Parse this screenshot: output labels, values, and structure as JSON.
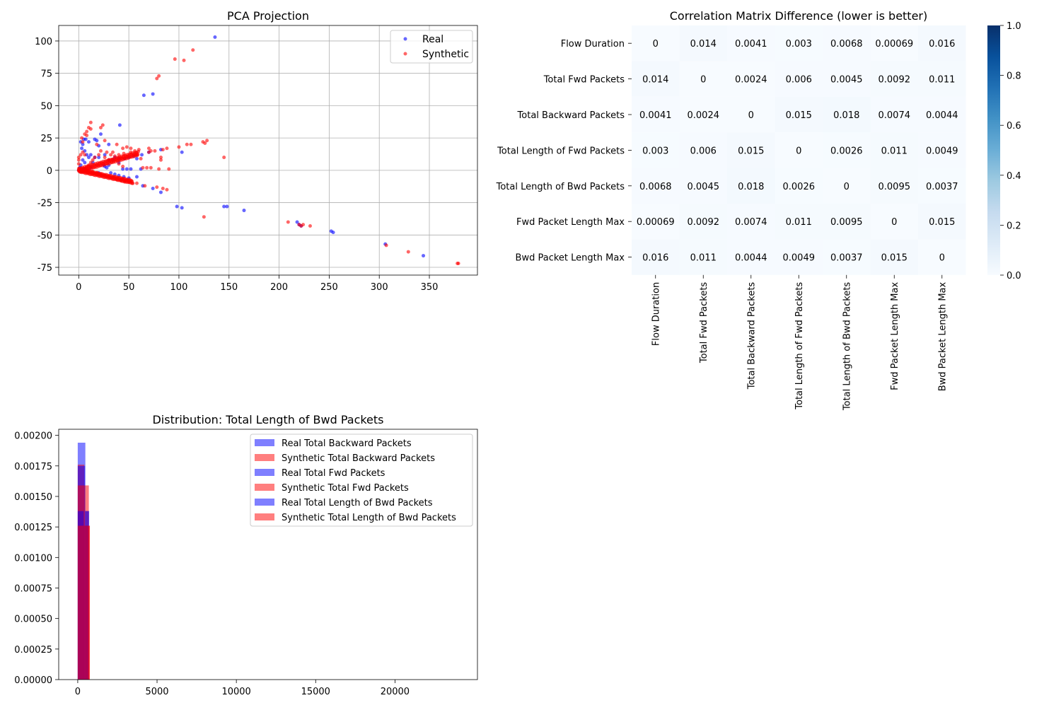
{
  "chart_data": [
    {
      "type": "scatter",
      "title": "PCA Projection",
      "xlabel": "",
      "ylabel": "",
      "xlim": [
        -20,
        398
      ],
      "ylim": [
        -81,
        112
      ],
      "xticks": [
        0,
        50,
        100,
        150,
        200,
        250,
        300,
        350
      ],
      "yticks": [
        -75,
        -50,
        -25,
        0,
        25,
        50,
        75,
        100
      ],
      "grid": true,
      "legend_position": "top-right",
      "series": [
        {
          "name": "Real",
          "color": "#0000ff",
          "points": [
            [
              136,
              103
            ],
            [
              65,
              58
            ],
            [
              74,
              59
            ],
            [
              41,
              35
            ],
            [
              2,
              22
            ],
            [
              4,
              20
            ],
            [
              3,
              17
            ],
            [
              5,
              24
            ],
            [
              7,
              24
            ],
            [
              10,
              22
            ],
            [
              16,
              24
            ],
            [
              18,
              23
            ],
            [
              20,
              19
            ],
            [
              22,
              28
            ],
            [
              12,
              12
            ],
            [
              16,
              10
            ],
            [
              20,
              10
            ],
            [
              26,
              12
            ],
            [
              30,
              8
            ],
            [
              34,
              8
            ],
            [
              36,
              10
            ],
            [
              40,
              9
            ],
            [
              46,
              9
            ],
            [
              50,
              10
            ],
            [
              55,
              11
            ],
            [
              58,
              9
            ],
            [
              63,
              12
            ],
            [
              70,
              14
            ],
            [
              82,
              16
            ],
            [
              103,
              14
            ],
            [
              30,
              20
            ],
            [
              40,
              6
            ],
            [
              44,
              1
            ],
            [
              48,
              1
            ],
            [
              52,
              1
            ],
            [
              58,
              -5
            ],
            [
              62,
              1
            ],
            [
              64,
              -12
            ],
            [
              74,
              -14
            ],
            [
              82,
              -17
            ],
            [
              98,
              -28
            ],
            [
              103,
              -29
            ],
            [
              145,
              -28
            ],
            [
              148,
              -28
            ],
            [
              165,
              -31
            ],
            [
              218,
              -40
            ],
            [
              220,
              -42
            ],
            [
              222,
              -43
            ],
            [
              252,
              -47
            ],
            [
              254,
              -48
            ],
            [
              306,
              -57
            ],
            [
              344,
              -66
            ],
            [
              14,
              6
            ],
            [
              10,
              10
            ],
            [
              8,
              12
            ],
            [
              6,
              15
            ],
            [
              25,
              4
            ],
            [
              28,
              2
            ],
            [
              32,
              -2
            ],
            [
              36,
              -3
            ],
            [
              40,
              -4
            ],
            [
              45,
              -5
            ],
            [
              50,
              -6
            ],
            [
              20,
              -2
            ],
            [
              26,
              3
            ],
            [
              30,
              4
            ],
            [
              4,
              8
            ],
            [
              6,
              6
            ],
            [
              2,
              4
            ],
            [
              1,
              2
            ],
            [
              0,
              0
            ],
            [
              3,
              -1
            ],
            [
              5,
              1
            ],
            [
              8,
              0
            ],
            [
              12,
              2
            ]
          ]
        },
        {
          "name": "Synthetic",
          "color": "#ff0000",
          "points": [
            [
              114,
              93
            ],
            [
              96,
              86
            ],
            [
              105,
              85
            ],
            [
              80,
              73
            ],
            [
              78,
              71
            ],
            [
              12,
              37
            ],
            [
              24,
              35
            ],
            [
              22,
              33
            ],
            [
              10,
              33
            ],
            [
              12,
              32
            ],
            [
              8,
              30
            ],
            [
              6,
              28
            ],
            [
              8,
              27
            ],
            [
              3,
              25
            ],
            [
              4,
              22
            ],
            [
              18,
              20
            ],
            [
              26,
              23
            ],
            [
              38,
              20
            ],
            [
              44,
              17
            ],
            [
              48,
              18
            ],
            [
              52,
              17
            ],
            [
              56,
              15
            ],
            [
              60,
              16
            ],
            [
              70,
              17
            ],
            [
              76,
              15
            ],
            [
              84,
              16
            ],
            [
              88,
              17
            ],
            [
              100,
              18
            ],
            [
              108,
              20
            ],
            [
              112,
              20
            ],
            [
              124,
              22
            ],
            [
              126,
              21
            ],
            [
              128,
              23
            ],
            [
              145,
              10
            ],
            [
              70,
              14
            ],
            [
              72,
              15
            ],
            [
              22,
              15
            ],
            [
              34,
              14
            ],
            [
              40,
              12
            ],
            [
              58,
              12
            ],
            [
              82,
              8
            ],
            [
              82,
              10
            ],
            [
              62,
              9
            ],
            [
              64,
              2
            ],
            [
              68,
              2
            ],
            [
              72,
              2
            ],
            [
              80,
              1
            ],
            [
              90,
              1
            ],
            [
              44,
              3
            ],
            [
              40,
              5
            ],
            [
              30,
              8
            ],
            [
              26,
              10
            ],
            [
              20,
              12
            ],
            [
              16,
              10
            ],
            [
              14,
              8
            ],
            [
              12,
              6
            ],
            [
              10,
              4
            ],
            [
              8,
              2
            ],
            [
              6,
              1
            ],
            [
              4,
              0
            ],
            [
              2,
              0
            ],
            [
              0,
              0
            ],
            [
              0,
              5
            ],
            [
              0,
              8
            ],
            [
              0,
              10
            ],
            [
              2,
              12
            ],
            [
              4,
              14
            ],
            [
              6,
              12
            ],
            [
              10,
              0
            ],
            [
              14,
              -1
            ],
            [
              18,
              -2
            ],
            [
              22,
              -3
            ],
            [
              26,
              -4
            ],
            [
              30,
              -5
            ],
            [
              34,
              -6
            ],
            [
              38,
              -7
            ],
            [
              42,
              -8
            ],
            [
              46,
              -9
            ],
            [
              50,
              -9
            ],
            [
              54,
              -10
            ],
            [
              58,
              -10
            ],
            [
              66,
              -12
            ],
            [
              78,
              -13
            ],
            [
              84,
              -14
            ],
            [
              88,
              -15
            ],
            [
              125,
              -36
            ],
            [
              209,
              -40
            ],
            [
              220,
              -42
            ],
            [
              222,
              -43
            ],
            [
              224,
              -42
            ],
            [
              231,
              -43
            ],
            [
              307,
              -58
            ],
            [
              329,
              -63
            ],
            [
              378,
              -72
            ],
            [
              379,
              -72
            ],
            [
              28,
              14
            ],
            [
              32,
              12
            ],
            [
              36,
              11
            ],
            [
              45,
              13
            ],
            [
              52,
              14
            ]
          ]
        }
      ]
    },
    {
      "type": "heatmap",
      "title": "Correlation Matrix Difference (lower is better)",
      "labels": [
        "Flow Duration",
        "Total Fwd Packets",
        "Total Backward Packets",
        "Total Length of Fwd Packets",
        "Total Length of Bwd Packets",
        "Fwd Packet Length Max",
        "Bwd Packet Length Max"
      ],
      "cells": [
        [
          "0",
          "0.014",
          "0.0041",
          "0.003",
          "0.0068",
          "0.00069",
          "0.016"
        ],
        [
          "0.014",
          "0",
          "0.0024",
          "0.006",
          "0.0045",
          "0.0092",
          "0.011"
        ],
        [
          "0.0041",
          "0.0024",
          "0",
          "0.015",
          "0.018",
          "0.0074",
          "0.0044"
        ],
        [
          "0.003",
          "0.006",
          "0.015",
          "0",
          "0.0026",
          "0.011",
          "0.0049"
        ],
        [
          "0.0068",
          "0.0045",
          "0.018",
          "0.0026",
          "0",
          "0.0095",
          "0.0037"
        ],
        [
          "0.00069",
          "0.0092",
          "0.0074",
          "0.011",
          "0.0095",
          "0",
          "0.015"
        ],
        [
          "0.016",
          "0.011",
          "0.0044",
          "0.0049",
          "0.0037",
          "0.015",
          "0"
        ]
      ],
      "colorbar": {
        "min": 0.0,
        "max": 1.0,
        "ticks": [
          "0.0",
          "0.2",
          "0.4",
          "0.6",
          "0.8",
          "1.0"
        ],
        "colormap": "Blues"
      }
    },
    {
      "type": "histogram",
      "title": "Distribution: Total Length of Bwd Packets",
      "xlabel": "",
      "ylabel": "",
      "xlim": [
        -1200,
        25200
      ],
      "ylim": [
        0,
        0.00205
      ],
      "xticks": [
        0,
        5000,
        10000,
        15000,
        20000
      ],
      "yticks": [
        "0.00000",
        "0.00025",
        "0.00050",
        "0.00075",
        "0.00100",
        "0.00125",
        "0.00150",
        "0.00175",
        "0.00200"
      ],
      "legend_position": "top-right",
      "series": [
        {
          "name": "Real Total Backward Packets",
          "color": "#0000ff",
          "bins": [
            [
              0,
              480,
              0.00194
            ],
            [
              480,
              720,
              0.00138
            ]
          ]
        },
        {
          "name": "Synthetic Total Backward Packets",
          "color": "#ff0000",
          "bins": [
            [
              0,
              420,
              0.00176
            ],
            [
              420,
              700,
              0.00159
            ]
          ]
        },
        {
          "name": "Real Total Fwd Packets",
          "color": "#0000ff",
          "bins": [
            [
              0,
              460,
              0.00175
            ],
            [
              460,
              700,
              0.00138
            ]
          ]
        },
        {
          "name": "Synthetic Total Fwd Packets",
          "color": "#ff0000",
          "bins": [
            [
              0,
              440,
              0.00159
            ],
            [
              440,
              760,
              0.00126
            ]
          ]
        },
        {
          "name": "Real Total Length of Bwd Packets",
          "color": "#0000ff",
          "bins": [
            [
              0,
              380,
              0.00138
            ],
            [
              380,
              660,
              0.00126
            ]
          ]
        },
        {
          "name": "Synthetic Total Length of Bwd Packets",
          "color": "#ff0000",
          "bins": [
            [
              0,
              360,
              0.00126
            ],
            [
              360,
              760,
              0.00126
            ]
          ]
        }
      ]
    }
  ]
}
